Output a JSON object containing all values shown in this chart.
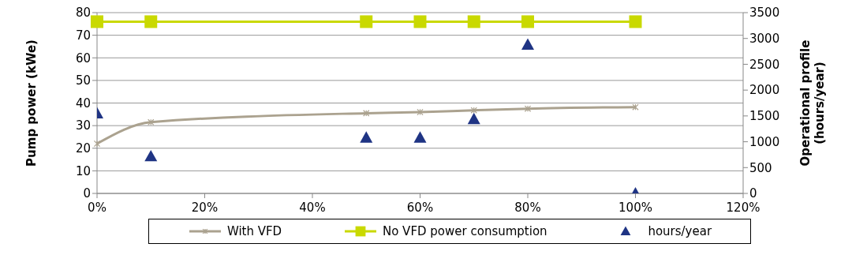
{
  "chart_data": {
    "type": "line",
    "x": [
      0,
      10,
      50,
      60,
      70,
      80,
      100
    ],
    "xlim": [
      0,
      120
    ],
    "xticks": [
      {
        "value": 0,
        "label": "0%"
      },
      {
        "value": 20,
        "label": "20%"
      },
      {
        "value": 40,
        "label": "40%"
      },
      {
        "value": 60,
        "label": "60%"
      },
      {
        "value": 80,
        "label": "80%"
      },
      {
        "value": 100,
        "label": "100%"
      },
      {
        "value": 120,
        "label": "120%"
      }
    ],
    "ylim": [
      0,
      80
    ],
    "yticks": [
      0,
      10,
      20,
      30,
      40,
      50,
      60,
      70,
      80
    ],
    "y2lim": [
      0,
      3500
    ],
    "y2ticks": [
      0,
      500,
      1000,
      1500,
      2000,
      2500,
      3000,
      3500
    ],
    "ylabel": "Pump power (kWe)",
    "y2label": "Operational profile (hours/year)",
    "grid": "y",
    "legend": "bottom",
    "series": [
      {
        "name": "With VFD",
        "color": "#aba28f",
        "marker": "cross",
        "values": [
          22,
          31.5,
          35.5,
          36,
          36.8,
          37.5,
          38.2
        ]
      },
      {
        "name": "No VFD power consumption",
        "color": "#c9d900",
        "marker": "square",
        "values": [
          76,
          76,
          76,
          76,
          76,
          76,
          76
        ]
      },
      {
        "name": "hours/year",
        "type": "scatter",
        "axis": "y2",
        "color": "#1f3484",
        "marker": "triangle",
        "values": [
          1550,
          720,
          1080,
          1080,
          1440,
          2880,
          0
        ]
      }
    ]
  }
}
